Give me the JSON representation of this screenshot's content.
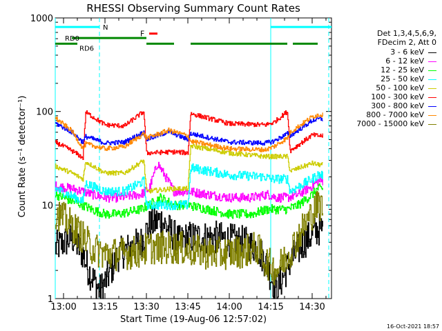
{
  "chart_data": {
    "type": "line",
    "title": "RHESSI Observing Summary Count Rates",
    "xlabel": "Start Time (19-Aug-06 12:57:02)",
    "ylabel": "Count Rate (s⁻¹ detector⁻¹)",
    "y_scale": "log",
    "ylim": [
      1,
      1000
    ],
    "y_ticks": [
      "1",
      "10",
      "100",
      "1000"
    ],
    "x_range_minutes": [
      "12:57",
      "14:37"
    ],
    "x_ticks": [
      "13:00",
      "13:15",
      "13:30",
      "13:45",
      "14:00",
      "14:15",
      "14:30"
    ],
    "legend_header": [
      "Det 1,3,4,5,6,9,",
      "FDecim 2, Att 0"
    ],
    "series": [
      {
        "name": "3 - 6 keV",
        "color": "#000000",
        "x": [
          "12:57",
          "13:03",
          "13:07",
          "13:09",
          "13:13",
          "13:15",
          "13:20",
          "13:28",
          "13:31",
          "13:35",
          "13:42",
          "13:45",
          "13:55",
          "14:05",
          "14:10",
          "14:13",
          "14:17",
          "14:22",
          "14:27",
          "14:32"
        ],
        "values": [
          3.5,
          4.5,
          3.0,
          2.0,
          1.2,
          1.5,
          3.0,
          4.0,
          6.0,
          7.0,
          4.0,
          4.5,
          4.5,
          4.0,
          3.5,
          2.5,
          1.2,
          2.5,
          4.0,
          5.5
        ]
      },
      {
        "name": "6 - 12 keV",
        "color": "#ff00ff",
        "x": [
          "12:57",
          "13:03",
          "13:07",
          "13:10",
          "13:15",
          "13:20",
          "13:28",
          "13:31",
          "13:34",
          "13:40",
          "13:45",
          "13:52",
          "14:00",
          "14:08",
          "14:14",
          "14:17",
          "14:21",
          "14:25",
          "14:30",
          "14:32"
        ],
        "values": [
          16,
          15,
          14,
          13,
          12,
          12,
          13,
          15,
          28,
          14,
          14,
          13,
          12,
          12,
          13,
          12,
          12,
          13,
          16,
          18
        ]
      },
      {
        "name": "12 - 25 keV",
        "color": "#00ff00",
        "x": [
          "12:57",
          "13:03",
          "13:07",
          "13:10",
          "13:15",
          "13:20",
          "13:28",
          "13:31",
          "13:35",
          "13:40",
          "13:45",
          "13:52",
          "14:00",
          "14:08",
          "14:14",
          "14:17",
          "14:21",
          "14:25",
          "14:30",
          "14:32"
        ],
        "values": [
          13,
          11,
          10,
          9,
          8,
          8,
          9,
          10,
          12,
          10,
          10,
          9,
          8,
          8,
          9,
          9,
          9,
          10,
          13,
          15
        ]
      },
      {
        "name": "25 - 50 keV",
        "color": "#00ffff",
        "x": [
          "12:57",
          "13:07",
          "13:08",
          "13:15",
          "13:22",
          "13:29",
          "13:30",
          "13:40",
          "13:45",
          "13:46",
          "14:00",
          "14:13",
          "14:15",
          "14:16",
          "14:21",
          "14:22",
          "14:30",
          "14:32"
        ],
        "values": [
          15,
          11,
          17,
          14,
          14,
          18,
          10,
          10,
          10,
          25,
          21,
          20,
          19,
          19,
          19,
          14,
          19,
          21
        ]
      },
      {
        "name": "50 - 100 keV",
        "color": "#cccc00",
        "x": [
          "12:57",
          "13:03",
          "13:07",
          "13:08",
          "13:15",
          "13:22",
          "13:29",
          "13:30",
          "13:40",
          "13:45",
          "13:46",
          "14:00",
          "14:13",
          "14:16",
          "14:21",
          "14:22",
          "14:30",
          "14:32"
        ],
        "values": [
          26,
          22,
          19,
          29,
          22,
          22,
          30,
          14,
          15,
          15,
          43,
          36,
          33,
          33,
          33,
          23,
          28,
          27
        ]
      },
      {
        "name": "100 - 300 keV",
        "color": "#ff0000",
        "x": [
          "12:57",
          "13:03",
          "13:07",
          "13:08",
          "13:15",
          "13:22",
          "13:29",
          "13:30",
          "13:40",
          "13:45",
          "13:46",
          "14:00",
          "14:13",
          "14:16",
          "14:21",
          "14:22",
          "14:30",
          "14:32"
        ],
        "values": [
          47,
          38,
          32,
          98,
          72,
          70,
          100,
          36,
          37,
          36,
          95,
          74,
          72,
          76,
          100,
          38,
          56,
          55
        ]
      },
      {
        "name": "300 - 800 keV",
        "color": "#0000ff",
        "x": [
          "12:57",
          "13:03",
          "13:07",
          "13:08",
          "13:15",
          "13:22",
          "13:29",
          "13:30",
          "13:38",
          "13:45",
          "13:46",
          "14:00",
          "14:13",
          "14:16",
          "14:21",
          "14:22",
          "14:30",
          "14:32"
        ],
        "values": [
          75,
          60,
          47,
          54,
          46,
          47,
          60,
          50,
          61,
          50,
          58,
          47,
          46,
          48,
          58,
          55,
          80,
          83
        ]
      },
      {
        "name": "800 - 7000 keV",
        "color": "#ff8800",
        "x": [
          "12:57",
          "13:03",
          "13:07",
          "13:08",
          "13:15",
          "13:22",
          "13:29",
          "13:30",
          "13:38",
          "13:45",
          "13:46",
          "14:00",
          "14:13",
          "14:16",
          "14:21",
          "14:22",
          "14:30",
          "14:32"
        ],
        "values": [
          85,
          62,
          40,
          45,
          40,
          42,
          58,
          52,
          63,
          55,
          48,
          40,
          39,
          42,
          52,
          60,
          88,
          92
        ]
      },
      {
        "name": "7000 - 15000 keV",
        "color": "#808000",
        "x": [
          "12:57",
          "13:03",
          "13:07",
          "13:10",
          "13:15",
          "13:20",
          "13:28",
          "13:31",
          "13:35",
          "13:42",
          "13:45",
          "13:55",
          "14:05",
          "14:10",
          "14:13",
          "14:17",
          "14:22",
          "14:27",
          "14:32"
        ],
        "values": [
          8.5,
          6.0,
          4.5,
          3.5,
          3.0,
          3.0,
          3.2,
          3.5,
          3.5,
          3.5,
          3.3,
          3.0,
          3.2,
          3.5,
          2.5,
          2.0,
          3.2,
          6.0,
          10.0
        ]
      }
    ],
    "annotations": {
      "night_N": {
        "label": "N",
        "color": "#00ffff",
        "segments": [
          [
            "12:57",
            "13:13"
          ],
          [
            "14:15",
            "14:37"
          ]
        ],
        "y": 800
      },
      "flare_F": {
        "label": "F",
        "color": "#ff0000",
        "segments": [
          [
            "13:31",
            "13:34"
          ]
        ],
        "y": 680
      },
      "rd0": {
        "label": "RD0",
        "color": "#008800",
        "segments": [
          [
            "13:03",
            "13:30"
          ]
        ],
        "y": 610
      },
      "rd6": {
        "label": "RD6",
        "color": "#008800",
        "segments": [
          [
            "12:57",
            "13:05"
          ],
          [
            "13:30",
            "13:40"
          ],
          [
            "13:46",
            "14:21"
          ],
          [
            "14:23",
            "14:32"
          ]
        ],
        "y": 530
      },
      "saa_lines": {
        "color": "#00ffff",
        "solid": [
          "12:57",
          "14:15"
        ],
        "dashed": [
          "13:13",
          "14:36"
        ]
      }
    }
  },
  "footer_timestamp": "16-Oct-2021 18:57"
}
